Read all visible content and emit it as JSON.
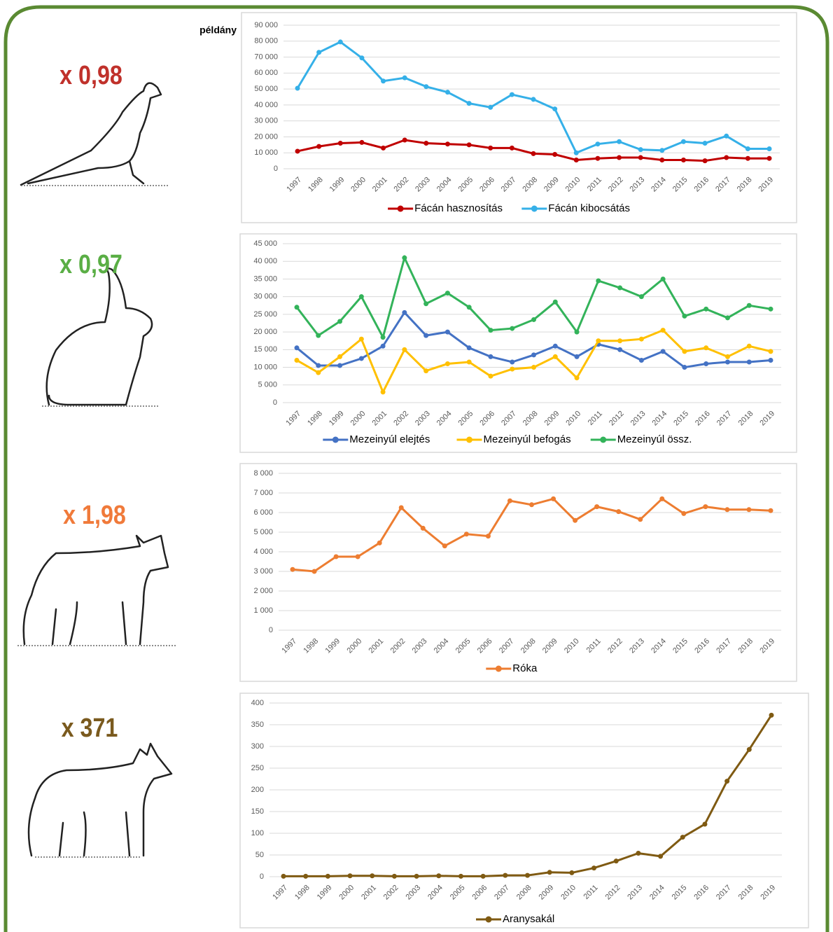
{
  "chart_data": [
    {
      "type": "line",
      "annotation": "x 0,98",
      "annotation_color": "#c0312b",
      "ylabel": "példány",
      "categories": [
        "1997",
        "1998",
        "1999",
        "2000",
        "2001",
        "2002",
        "2003",
        "2004",
        "2005",
        "2006",
        "2007",
        "2008",
        "2009",
        "2010",
        "2011",
        "2012",
        "2013",
        "2014",
        "2015",
        "2016",
        "2017",
        "2018",
        "2019"
      ],
      "series": [
        {
          "name": "Fácán hasznosítás",
          "color": "#c00000",
          "values": [
            11000,
            14000,
            16000,
            16500,
            13000,
            18000,
            16000,
            15500,
            15000,
            13000,
            13000,
            9500,
            9000,
            5500,
            6500,
            7000,
            7000,
            5500,
            5500,
            5000,
            7000,
            6500,
            6500
          ]
        },
        {
          "name": "Fácán kibocsátás",
          "color": "#35b0e8",
          "values": [
            50500,
            73000,
            79500,
            69500,
            55000,
            57000,
            51500,
            48000,
            41000,
            38500,
            46500,
            43500,
            37500,
            10000,
            15500,
            17000,
            12000,
            11500,
            17000,
            16000,
            20500,
            12500,
            12500
          ]
        }
      ],
      "ylim": [
        0,
        90000
      ],
      "yticks": [
        0,
        {
          "value": 10000,
          "label": "10 000"
        },
        {
          "value": 20000,
          "label": "20 000"
        },
        {
          "value": 30000,
          "label": "30 000"
        },
        {
          "value": 40000,
          "label": "40 000"
        },
        {
          "value": 50000,
          "label": "50 000"
        },
        {
          "value": 60000,
          "label": "60 000"
        },
        {
          "value": 70000,
          "label": "70 000"
        },
        {
          "value": 80000,
          "label": "80 000"
        },
        {
          "value": 90000,
          "label": "90 000"
        }
      ],
      "grid": true
    },
    {
      "type": "line",
      "annotation": "x 0,97",
      "annotation_color": "#5aae45",
      "categories": [
        "1997",
        "1998",
        "1999",
        "2000",
        "2001",
        "2002",
        "2003",
        "2004",
        "2005",
        "2006",
        "2007",
        "2008",
        "2009",
        "2010",
        "2011",
        "2012",
        "2013",
        "2014",
        "2015",
        "2016",
        "2017",
        "2018",
        "2019"
      ],
      "series": [
        {
          "name": "Mezeinyúl elejtés",
          "color": "#4472c4",
          "values": [
            15500,
            10500,
            10500,
            12500,
            16000,
            25500,
            19000,
            20000,
            15500,
            13000,
            11500,
            13500,
            16000,
            13000,
            16500,
            15000,
            12000,
            14500,
            10000,
            11000,
            11500,
            11500,
            12000
          ]
        },
        {
          "name": "Mezeinyúl befogás",
          "color": "#ffc000",
          "values": [
            12000,
            8500,
            13000,
            18000,
            3000,
            15000,
            9000,
            11000,
            11500,
            7500,
            9500,
            10000,
            13000,
            7000,
            17500,
            17500,
            18000,
            20500,
            14500,
            15500,
            13000,
            16000,
            14500
          ]
        },
        {
          "name": "Mezeinyúl össz.",
          "color": "#33b35a",
          "values": [
            27000,
            19000,
            23000,
            30000,
            18500,
            41000,
            28000,
            31000,
            27000,
            20500,
            21000,
            23500,
            28500,
            20000,
            34500,
            32500,
            30000,
            35000,
            24500,
            26500,
            24000,
            27500,
            26500
          ]
        }
      ],
      "ylim": [
        0,
        45000
      ],
      "yticks": [
        0,
        {
          "value": 5000,
          "label": "5 000"
        },
        {
          "value": 10000,
          "label": "10 000"
        },
        {
          "value": 15000,
          "label": "15 000"
        },
        {
          "value": 20000,
          "label": "20 000"
        },
        {
          "value": 25000,
          "label": "25 000"
        },
        {
          "value": 30000,
          "label": "30 000"
        },
        {
          "value": 35000,
          "label": "35 000"
        },
        {
          "value": 40000,
          "label": "40 000"
        },
        {
          "value": 45000,
          "label": "45 000"
        }
      ],
      "grid": true
    },
    {
      "type": "line",
      "annotation": "x 1,98",
      "annotation_color": "#f07a3a",
      "categories": [
        "1997",
        "1998",
        "1999",
        "2000",
        "2001",
        "2002",
        "2003",
        "2004",
        "2005",
        "2006",
        "2007",
        "2008",
        "2009",
        "2010",
        "2011",
        "2012",
        "2013",
        "2014",
        "2015",
        "2016",
        "2017",
        "2018",
        "2019"
      ],
      "series": [
        {
          "name": "Róka",
          "color": "#ed7d31",
          "values": [
            3100,
            3000,
            3750,
            3750,
            4450,
            6250,
            5200,
            4300,
            4900,
            4800,
            6600,
            6400,
            6700,
            5600,
            6300,
            6050,
            5650,
            6700,
            5950,
            6300,
            6150,
            6150,
            6100
          ]
        }
      ],
      "ylim": [
        0,
        8000
      ],
      "yticks": [
        0,
        {
          "value": 1000,
          "label": "1 000"
        },
        {
          "value": 2000,
          "label": "2 000"
        },
        {
          "value": 3000,
          "label": "3 000"
        },
        {
          "value": 4000,
          "label": "4 000"
        },
        {
          "value": 5000,
          "label": "5 000"
        },
        {
          "value": 6000,
          "label": "6 000"
        },
        {
          "value": 7000,
          "label": "7 000"
        },
        {
          "value": 8000,
          "label": "8 000"
        }
      ],
      "grid": true
    },
    {
      "type": "line",
      "annotation": "x 371",
      "annotation_color": "#7a5a1e",
      "categories": [
        "1997",
        "1998",
        "1999",
        "2000",
        "2001",
        "2002",
        "2003",
        "2004",
        "2005",
        "2006",
        "2007",
        "2008",
        "2009",
        "2010",
        "2011",
        "2012",
        "2013",
        "2014",
        "2015",
        "2016",
        "2017",
        "2018",
        "2019"
      ],
      "series": [
        {
          "name": "Aranysakál",
          "color": "#7f5a12",
          "values": [
            1,
            1,
            1,
            2,
            2,
            1,
            1,
            2,
            1,
            1,
            3,
            3,
            10,
            9,
            20,
            36,
            54,
            47,
            91,
            121,
            220,
            293,
            372
          ]
        }
      ],
      "ylim": [
        0,
        400
      ],
      "yticks": [
        0,
        50,
        100,
        150,
        200,
        250,
        300,
        350,
        400
      ],
      "grid": true
    }
  ]
}
